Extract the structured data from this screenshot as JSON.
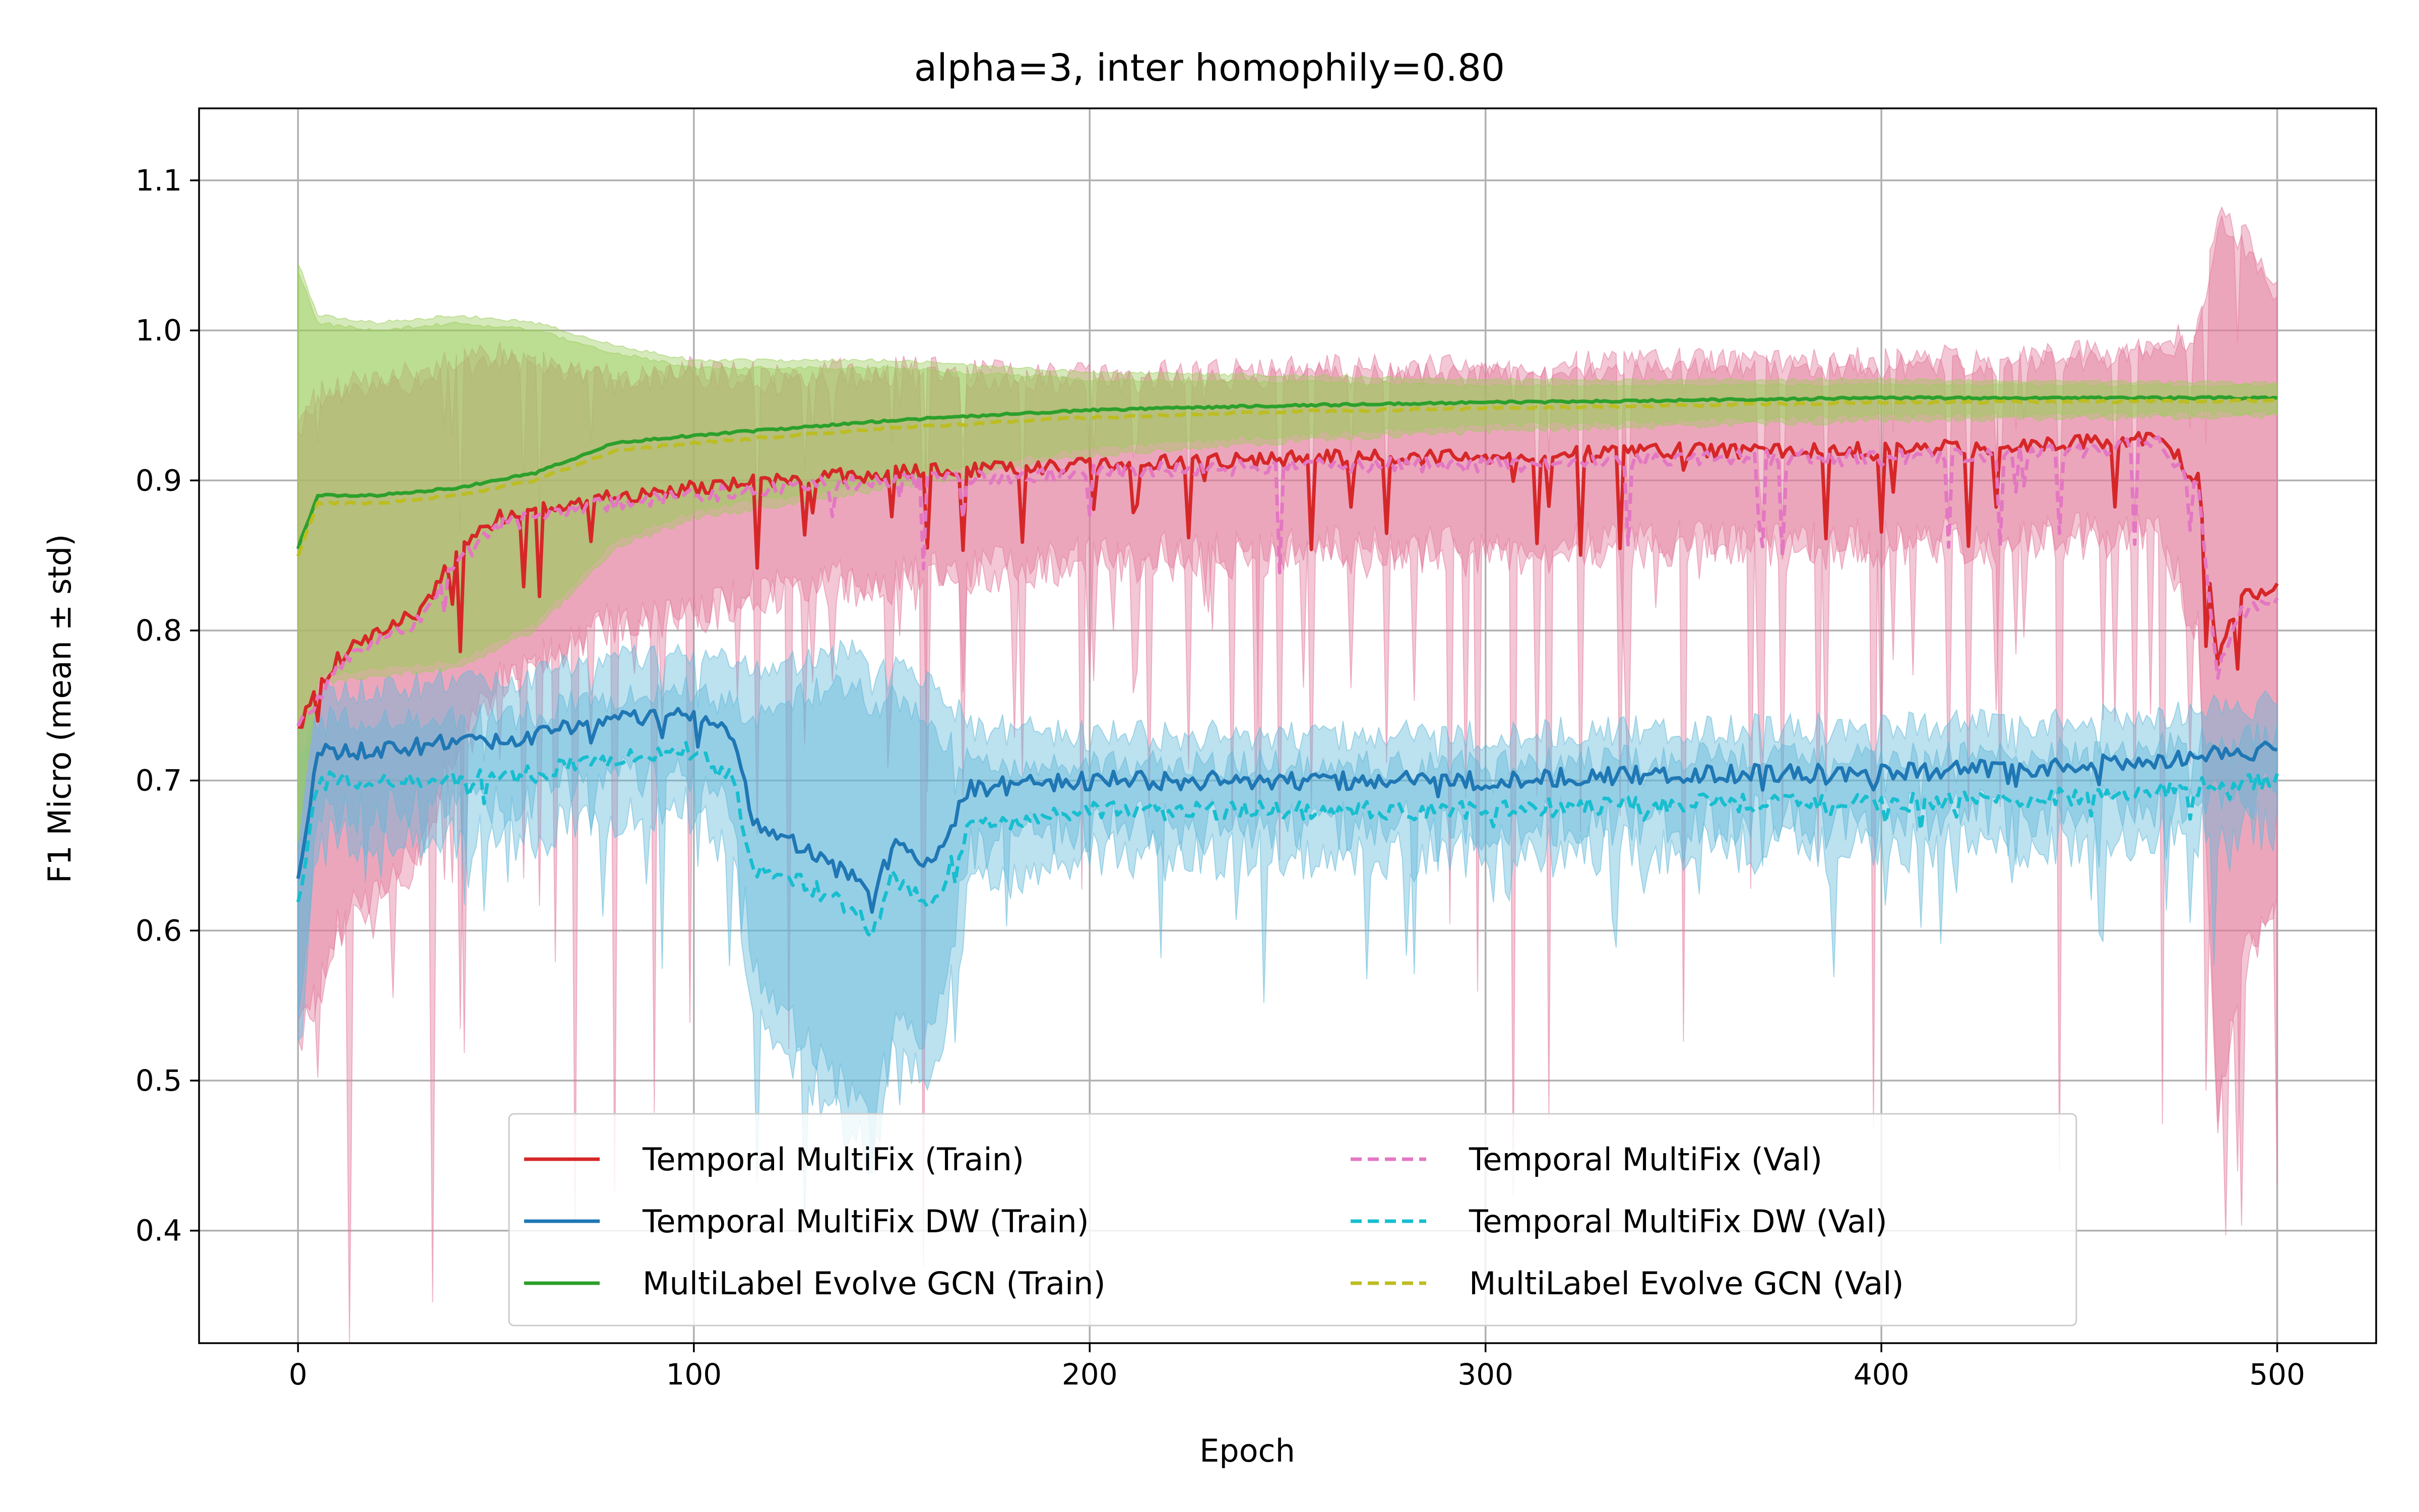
{
  "chart_data": {
    "type": "line",
    "title": "alpha=3, inter homophily=0.80",
    "xlabel": "Epoch",
    "ylabel": "F1 Micro (mean ± std)",
    "xlim": [
      -25,
      525
    ],
    "ylim": [
      0.325,
      1.148
    ],
    "xticks": [
      "0",
      "100",
      "200",
      "300",
      "400",
      "500"
    ],
    "yticks": [
      "0.4",
      "0.5",
      "0.6",
      "0.7",
      "0.8",
      "0.9",
      "1.0",
      "1.1"
    ],
    "grid": true,
    "legend_position": "lower-center",
    "colors": {
      "tmf_train": "#d62728",
      "tmf_val": "#e377c2",
      "dw_train": "#1f77b4",
      "dw_val": "#17becf",
      "gcn_train": "#2ca02c",
      "gcn_val": "#bcbd22",
      "band_pink": "#e27a9b",
      "band_blue": "#5fb8d8",
      "band_green": "#9ccc5a"
    },
    "series": [
      {
        "name": "Temporal MultiFix (Train)",
        "key": "tmf_train",
        "dash": "solid",
        "x": [
          0,
          5,
          10,
          20,
          30,
          40,
          50,
          60,
          70,
          80,
          100,
          120,
          150,
          200,
          250,
          300,
          350,
          400,
          450,
          470,
          480,
          485,
          490,
          500
        ],
        "y": [
          0.74,
          0.76,
          0.78,
          0.8,
          0.81,
          0.85,
          0.875,
          0.88,
          0.885,
          0.89,
          0.895,
          0.9,
          0.905,
          0.91,
          0.915,
          0.915,
          0.92,
          0.92,
          0.925,
          0.93,
          0.9,
          0.78,
          0.82,
          0.83
        ],
        "std": [
          0.2,
          0.2,
          0.18,
          0.17,
          0.16,
          0.13,
          0.11,
          0.1,
          0.09,
          0.08,
          0.08,
          0.07,
          0.07,
          0.06,
          0.06,
          0.06,
          0.06,
          0.06,
          0.06,
          0.06,
          0.1,
          0.3,
          0.25,
          0.2
        ]
      },
      {
        "name": "Temporal MultiFix DW (Train)",
        "key": "dw_train",
        "dash": "solid",
        "x": [
          0,
          5,
          20,
          40,
          60,
          80,
          100,
          110,
          115,
          125,
          140,
          145,
          150,
          160,
          165,
          170,
          200,
          250,
          300,
          350,
          400,
          450,
          500
        ],
        "y": [
          0.63,
          0.72,
          0.72,
          0.725,
          0.73,
          0.74,
          0.745,
          0.73,
          0.67,
          0.66,
          0.635,
          0.62,
          0.66,
          0.64,
          0.67,
          0.695,
          0.7,
          0.7,
          0.7,
          0.705,
          0.705,
          0.71,
          0.72
        ],
        "std": [
          0.1,
          0.04,
          0.04,
          0.04,
          0.04,
          0.04,
          0.04,
          0.05,
          0.1,
          0.12,
          0.15,
          0.15,
          0.12,
          0.12,
          0.08,
          0.04,
          0.03,
          0.03,
          0.03,
          0.03,
          0.03,
          0.03,
          0.03
        ]
      },
      {
        "name": "MultiLabel Evolve GCN (Train)",
        "key": "gcn_train",
        "dash": "solid",
        "x": [
          0,
          5,
          20,
          40,
          60,
          80,
          100,
          150,
          200,
          250,
          300,
          400,
          500
        ],
        "y": [
          0.855,
          0.89,
          0.89,
          0.895,
          0.905,
          0.925,
          0.93,
          0.94,
          0.947,
          0.95,
          0.952,
          0.955,
          0.955
        ],
        "std": [
          0.19,
          0.12,
          0.115,
          0.115,
          0.1,
          0.065,
          0.05,
          0.04,
          0.025,
          0.02,
          0.015,
          0.012,
          0.01
        ]
      },
      {
        "name": "Temporal MultiFix (Val)",
        "key": "tmf_val",
        "dash": "dashed",
        "x": [
          0,
          5,
          10,
          20,
          30,
          40,
          50,
          60,
          70,
          80,
          100,
          120,
          150,
          200,
          250,
          300,
          350,
          400,
          450,
          470,
          480,
          485,
          490,
          500
        ],
        "y": [
          0.735,
          0.755,
          0.775,
          0.795,
          0.805,
          0.845,
          0.87,
          0.875,
          0.88,
          0.885,
          0.89,
          0.895,
          0.9,
          0.905,
          0.91,
          0.91,
          0.915,
          0.915,
          0.92,
          0.925,
          0.895,
          0.77,
          0.81,
          0.82
        ],
        "std": [
          0.2,
          0.2,
          0.18,
          0.17,
          0.16,
          0.13,
          0.11,
          0.1,
          0.09,
          0.08,
          0.08,
          0.07,
          0.07,
          0.06,
          0.06,
          0.06,
          0.06,
          0.06,
          0.06,
          0.06,
          0.1,
          0.3,
          0.25,
          0.2
        ]
      },
      {
        "name": "Temporal MultiFix DW (Val)",
        "key": "dw_val",
        "dash": "dashed",
        "x": [
          0,
          5,
          20,
          40,
          60,
          80,
          100,
          110,
          115,
          125,
          140,
          145,
          150,
          160,
          165,
          170,
          200,
          250,
          300,
          350,
          400,
          450,
          500
        ],
        "y": [
          0.615,
          0.7,
          0.7,
          0.7,
          0.705,
          0.715,
          0.72,
          0.7,
          0.64,
          0.635,
          0.615,
          0.6,
          0.635,
          0.615,
          0.645,
          0.67,
          0.68,
          0.68,
          0.68,
          0.685,
          0.685,
          0.69,
          0.7
        ],
        "std": [
          0.1,
          0.04,
          0.04,
          0.04,
          0.04,
          0.04,
          0.04,
          0.05,
          0.1,
          0.12,
          0.15,
          0.15,
          0.12,
          0.12,
          0.08,
          0.04,
          0.03,
          0.03,
          0.03,
          0.03,
          0.03,
          0.03,
          0.03
        ]
      },
      {
        "name": "MultiLabel Evolve GCN (Val)",
        "key": "gcn_val",
        "dash": "dashed",
        "x": [
          0,
          5,
          20,
          40,
          60,
          80,
          100,
          150,
          200,
          250,
          300,
          400,
          500
        ],
        "y": [
          0.85,
          0.885,
          0.885,
          0.89,
          0.9,
          0.92,
          0.925,
          0.935,
          0.942,
          0.946,
          0.948,
          0.952,
          0.953
        ],
        "std": [
          0.19,
          0.12,
          0.115,
          0.115,
          0.1,
          0.065,
          0.05,
          0.04,
          0.025,
          0.02,
          0.015,
          0.012,
          0.01
        ]
      }
    ]
  }
}
